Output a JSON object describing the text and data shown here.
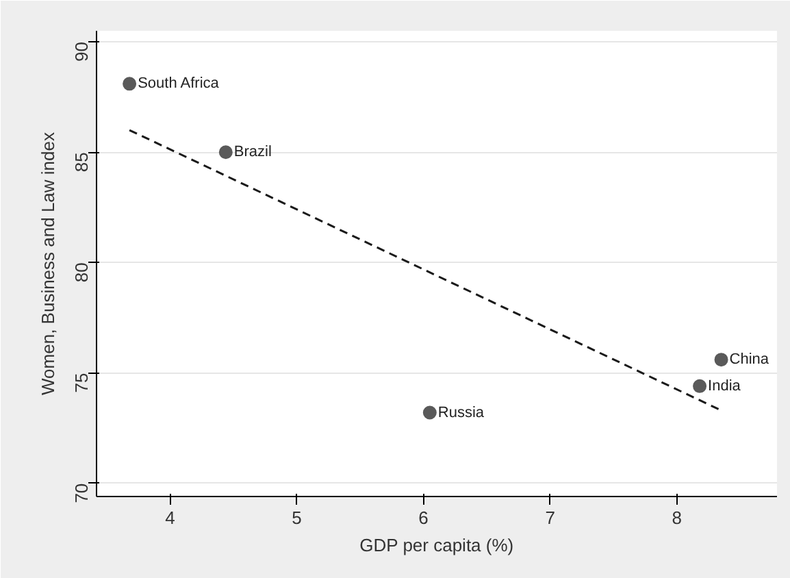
{
  "chart_data": {
    "type": "scatter",
    "xlabel": "GDP per capita (%)",
    "ylabel": "Women, Business and Law index",
    "xlim": [
      3.42,
      8.79
    ],
    "ylim": [
      69.4,
      90.5
    ],
    "xticks": [
      4,
      5,
      6,
      7,
      8
    ],
    "yticks": [
      70,
      75,
      80,
      85,
      90
    ],
    "grid": "y",
    "annotations": [
      {
        "text": "South Africa",
        "x": 3.68,
        "y": 88.1
      },
      {
        "text": "Brazil",
        "x": 4.44,
        "y": 85.0
      },
      {
        "text": "Russia",
        "x": 6.05,
        "y": 73.2
      },
      {
        "text": "India",
        "x": 8.18,
        "y": 74.4
      },
      {
        "text": "China",
        "x": 8.35,
        "y": 75.6
      }
    ],
    "series": [
      {
        "color": "#5a5a5a",
        "marker": "circle",
        "x": [
          3.68,
          4.44,
          6.05,
          8.18,
          8.35
        ],
        "values": [
          88.1,
          85.0,
          73.2,
          74.4,
          75.6
        ]
      },
      {
        "type": "line",
        "color": "#1a1a1a",
        "marker": "none",
        "line_style": "dashed",
        "x": [
          3.68,
          8.35
        ],
        "values": [
          86.0,
          73.3
        ]
      }
    ]
  }
}
